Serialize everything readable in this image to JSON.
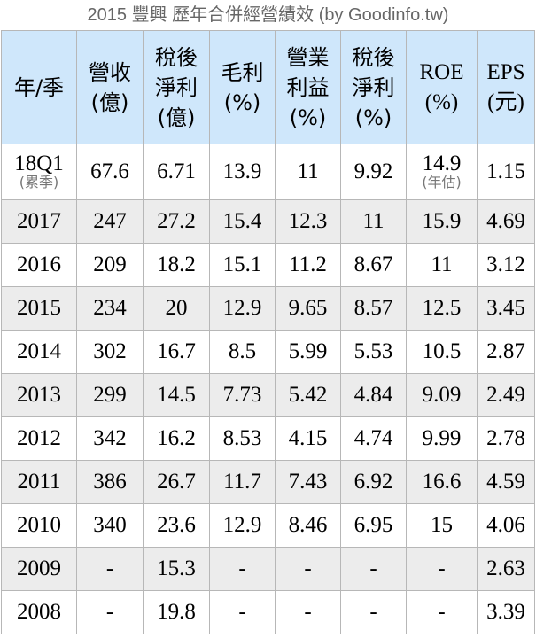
{
  "title": "2015 豐興 歷年合併經營績效 (by Goodinfo.tw)",
  "chart_data": {
    "type": "table",
    "title": "2015 豐興 歷年合併經營績效 (by Goodinfo.tw)",
    "columns": [
      {
        "lines": [
          "年/季"
        ]
      },
      {
        "lines": [
          "營收",
          "(億)"
        ]
      },
      {
        "lines": [
          "稅後",
          "淨利",
          "(億)"
        ]
      },
      {
        "lines": [
          "毛利",
          "(%)"
        ]
      },
      {
        "lines": [
          "營業",
          "利益",
          "(%)"
        ]
      },
      {
        "lines": [
          "稅後",
          "淨利",
          "(%)"
        ]
      },
      {
        "lines": [
          "ROE",
          "(%)"
        ]
      },
      {
        "lines": [
          "EPS",
          "(元)"
        ]
      }
    ],
    "rows": [
      {
        "period": "18Q1",
        "period_note": "(累季)",
        "revenue": "67.6",
        "net_income": "6.71",
        "gross_margin": "13.9",
        "operating_margin": "11",
        "net_margin": "9.92",
        "roe": "14.9",
        "roe_note": "(年估)",
        "eps": "1.15"
      },
      {
        "period": "2017",
        "revenue": "247",
        "net_income": "27.2",
        "gross_margin": "15.4",
        "operating_margin": "12.3",
        "net_margin": "11",
        "roe": "15.9",
        "eps": "4.69"
      },
      {
        "period": "2016",
        "revenue": "209",
        "net_income": "18.2",
        "gross_margin": "15.1",
        "operating_margin": "11.2",
        "net_margin": "8.67",
        "roe": "11",
        "eps": "3.12"
      },
      {
        "period": "2015",
        "revenue": "234",
        "net_income": "20",
        "gross_margin": "12.9",
        "operating_margin": "9.65",
        "net_margin": "8.57",
        "roe": "12.5",
        "eps": "3.45"
      },
      {
        "period": "2014",
        "revenue": "302",
        "net_income": "16.7",
        "gross_margin": "8.5",
        "operating_margin": "5.99",
        "net_margin": "5.53",
        "roe": "10.5",
        "eps": "2.87"
      },
      {
        "period": "2013",
        "revenue": "299",
        "net_income": "14.5",
        "gross_margin": "7.73",
        "operating_margin": "5.42",
        "net_margin": "4.84",
        "roe": "9.09",
        "eps": "2.49"
      },
      {
        "period": "2012",
        "revenue": "342",
        "net_income": "16.2",
        "gross_margin": "8.53",
        "operating_margin": "4.15",
        "net_margin": "4.74",
        "roe": "9.99",
        "eps": "2.78"
      },
      {
        "period": "2011",
        "revenue": "386",
        "net_income": "26.7",
        "gross_margin": "11.7",
        "operating_margin": "7.43",
        "net_margin": "6.92",
        "roe": "16.6",
        "eps": "4.59"
      },
      {
        "period": "2010",
        "revenue": "340",
        "net_income": "23.6",
        "gross_margin": "12.9",
        "operating_margin": "8.46",
        "net_margin": "6.95",
        "roe": "15",
        "eps": "4.06"
      },
      {
        "period": "2009",
        "revenue": "-",
        "net_income": "15.3",
        "gross_margin": "-",
        "operating_margin": "-",
        "net_margin": "-",
        "roe": "-",
        "eps": "2.63"
      },
      {
        "period": "2008",
        "revenue": "-",
        "net_income": "19.8",
        "gross_margin": "-",
        "operating_margin": "-",
        "net_margin": "-",
        "roe": "-",
        "eps": "3.39"
      }
    ]
  },
  "colors": {
    "header_bg": "#cfe7fb",
    "alt_row_bg": "#ececec",
    "border": "#b7b7b7",
    "title_text": "#666666",
    "note_text": "#777777"
  }
}
